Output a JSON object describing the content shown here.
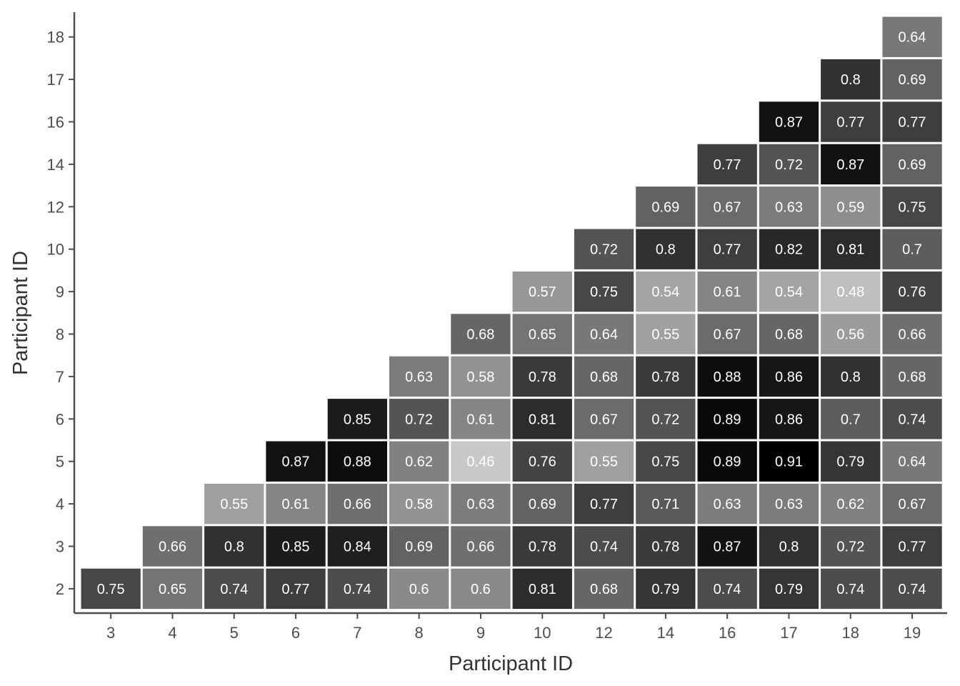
{
  "chart_data": {
    "type": "heatmap",
    "title": "",
    "xlabel": "Participant ID",
    "ylabel": "Participant ID",
    "x_categories": [
      "3",
      "4",
      "5",
      "6",
      "7",
      "8",
      "9",
      "10",
      "12",
      "14",
      "16",
      "17",
      "18",
      "19"
    ],
    "y_categories": [
      "2",
      "3",
      "4",
      "5",
      "6",
      "7",
      "8",
      "9",
      "10",
      "12",
      "14",
      "16",
      "17",
      "18"
    ],
    "color_scale": {
      "low_value": 0.46,
      "high_value": 0.91,
      "low_color": "#c8c8c8",
      "high_color": "#000000"
    },
    "grid": false,
    "legend": "none",
    "values": {
      "2": [
        0.75,
        0.65,
        0.74,
        0.77,
        0.74,
        0.6,
        0.6,
        0.81,
        0.68,
        0.79,
        0.74,
        0.79,
        0.74,
        0.74
      ],
      "3": [
        null,
        0.66,
        0.8,
        0.85,
        0.84,
        0.69,
        0.66,
        0.78,
        0.74,
        0.78,
        0.87,
        0.8,
        0.72,
        0.77
      ],
      "4": [
        null,
        null,
        0.55,
        0.61,
        0.66,
        0.58,
        0.63,
        0.69,
        0.77,
        0.71,
        0.63,
        0.63,
        0.62,
        0.67
      ],
      "5": [
        null,
        null,
        null,
        0.87,
        0.88,
        0.62,
        0.46,
        0.76,
        0.55,
        0.75,
        0.89,
        0.91,
        0.79,
        0.64
      ],
      "6": [
        null,
        null,
        null,
        null,
        0.85,
        0.72,
        0.61,
        0.81,
        0.67,
        0.72,
        0.89,
        0.86,
        0.7,
        0.74
      ],
      "7": [
        null,
        null,
        null,
        null,
        null,
        0.63,
        0.58,
        0.78,
        0.68,
        0.78,
        0.88,
        0.86,
        0.8,
        0.68
      ],
      "8": [
        null,
        null,
        null,
        null,
        null,
        null,
        0.68,
        0.65,
        0.64,
        0.55,
        0.67,
        0.68,
        0.56,
        0.66
      ],
      "9": [
        null,
        null,
        null,
        null,
        null,
        null,
        null,
        0.57,
        0.75,
        0.54,
        0.61,
        0.54,
        0.48,
        0.76
      ],
      "10": [
        null,
        null,
        null,
        null,
        null,
        null,
        null,
        null,
        0.72,
        0.8,
        0.77,
        0.82,
        0.81,
        0.7
      ],
      "12": [
        null,
        null,
        null,
        null,
        null,
        null,
        null,
        null,
        null,
        0.69,
        0.67,
        0.63,
        0.59,
        0.75
      ],
      "14": [
        null,
        null,
        null,
        null,
        null,
        null,
        null,
        null,
        null,
        null,
        0.77,
        0.72,
        0.87,
        0.69
      ],
      "16": [
        null,
        null,
        null,
        null,
        null,
        null,
        null,
        null,
        null,
        null,
        null,
        0.87,
        0.77,
        0.77
      ],
      "17": [
        null,
        null,
        null,
        null,
        null,
        null,
        null,
        null,
        null,
        null,
        null,
        null,
        0.8,
        0.69
      ],
      "18": [
        null,
        null,
        null,
        null,
        null,
        null,
        null,
        null,
        null,
        null,
        null,
        null,
        null,
        0.64
      ]
    }
  }
}
